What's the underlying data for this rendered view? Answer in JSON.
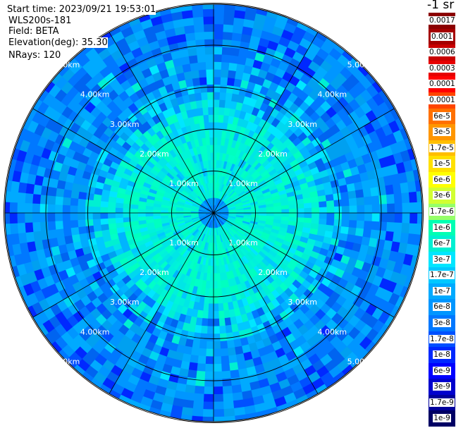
{
  "header": {
    "start_time": "Start time: 2023/09/21 19:53:01",
    "instrument": "WLS200s-181",
    "field": "Field: BETA",
    "elevation": "Elevation(deg): 35.30",
    "nrays": "NRays: 120"
  },
  "chart_data": {
    "type": "heatmap",
    "projection": "polar",
    "unit_label": "-1 sr",
    "rays": 120,
    "range_rings_km": [
      1,
      2,
      3,
      4,
      5
    ],
    "range_ring_labels": [
      "1.00km",
      "2.00km",
      "3.00km",
      "4.00km",
      "5.00km"
    ],
    "max_range_km": 5.0,
    "spokes": 12,
    "colorbar": {
      "labels": [
        "0.0017",
        "0.001",
        "0.0006",
        "0.0003",
        "0.00017",
        "0.0001",
        "6e-5",
        "3e-5",
        "1.7e-5",
        "1e-5",
        "6e-6",
        "3e-6",
        "1.7e-6",
        "1e-6",
        "6e-7",
        "3e-7",
        "1.7e-7",
        "1e-7",
        "6e-8",
        "3e-8",
        "1.7e-8",
        "1e-8",
        "6e-9",
        "3e-9",
        "1.7e-9",
        "1e-9"
      ],
      "colors": [
        "#8b0000",
        "#a50000",
        "#c80000",
        "#e60000",
        "#ff0000",
        "#ff4500",
        "#ff7000",
        "#ff9600",
        "#ffbe00",
        "#ffe000",
        "#ffff00",
        "#d2ff32",
        "#96ff69",
        "#00ffb4",
        "#00f0d2",
        "#00e6ff",
        "#00c8ff",
        "#00aaff",
        "#0096ff",
        "#0078ff",
        "#0050ff",
        "#0028ff",
        "#0000ff",
        "#0000cd",
        "#00009b",
        "#000064"
      ]
    }
  }
}
